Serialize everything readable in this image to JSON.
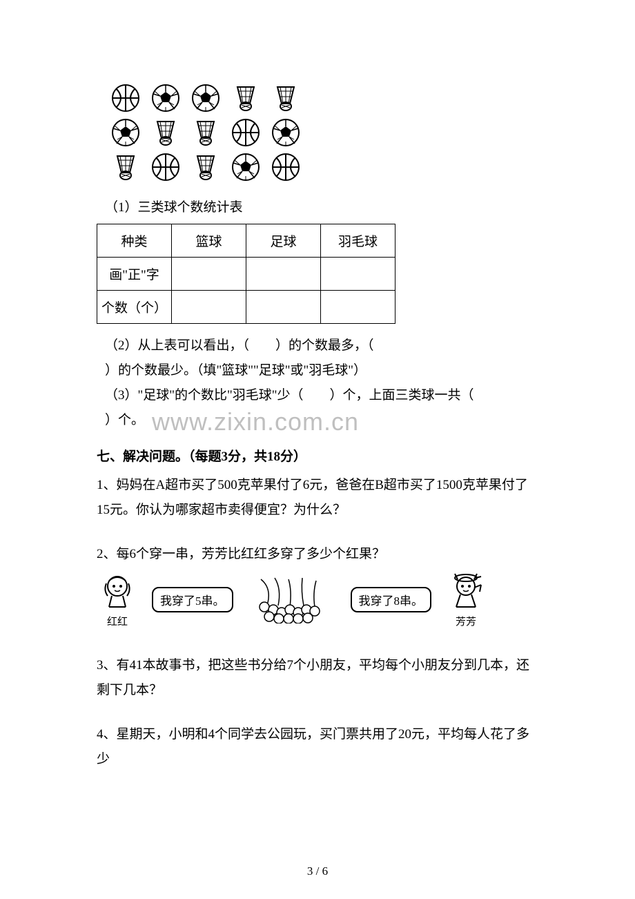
{
  "balls": {
    "row1": [
      "basketball",
      "soccer",
      "soccer",
      "shuttlecock",
      "shuttlecock"
    ],
    "row2": [
      "soccer",
      "shuttlecock",
      "shuttlecock",
      "basketball",
      "soccer"
    ],
    "row3": [
      "shuttlecock",
      "basketball",
      "shuttlecock",
      "soccer",
      "basketball"
    ]
  },
  "q1_label": "（1）三类球个数统计表",
  "table": {
    "header": [
      "种类",
      "篮球",
      "足球",
      "羽毛球"
    ],
    "row1_label": "画\"正\"字",
    "row2_label": "个数（个）"
  },
  "q2_line1": "（2）从上表可以看出，（　　）的个数最多，（",
  "q2_line2": "）的个数最少。（填\"篮球\"\"足球\"或\"羽毛球\"）",
  "q3_line1": "（3）\"足球\"的个数比\"羽毛球\"少（　　）个，上面三类球一共（",
  "q3_line2": "）个。",
  "section7_title": "七、解决问题。（每题3分，共18分）",
  "p1": "1、妈妈在A超市买了500克苹果付了6元，爸爸在B超市买了1500克苹果付了15元。你认为哪家超市卖得便宜？为什么？",
  "p2": "2、每6个穿一串，芳芳比红红多穿了多少个红果？",
  "speech_left": "我穿了5串。",
  "char_left": "红红",
  "speech_right": "我穿了8串。",
  "char_right": "芳芳",
  "p3": "3、有41本故事书，把这些书分给7个小朋友，平均每个小朋友分到几本，还剩下几本？",
  "p4": "4、星期天，小明和4个同学去公园玩，买门票共用了20元，平均每人花了多少",
  "watermark": "www.zixin.com.cn",
  "page_num": "3 / 6"
}
